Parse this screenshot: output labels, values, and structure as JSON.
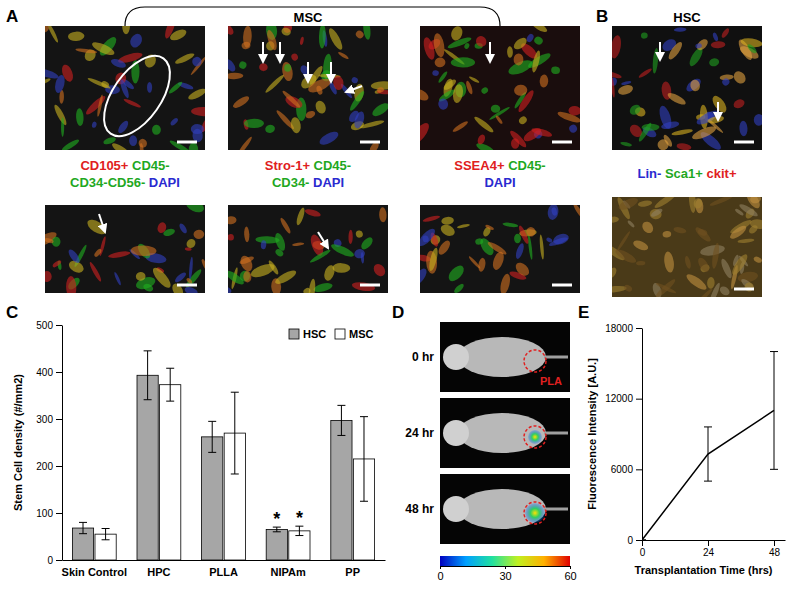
{
  "panel_labels": [
    "A",
    "B",
    "C",
    "D",
    "E"
  ],
  "panel_a": {
    "title": "MSC",
    "stains": [
      {
        "lines": [
          [
            {
              "text": "CD105+",
              "color": "#e02020"
            },
            {
              "text": " CD45-",
              "color": "#1fa81f"
            }
          ],
          [
            {
              "text": "CD34-CD56-",
              "color": "#1fa81f"
            },
            {
              "text": " DAPI",
              "color": "#2a2ad0"
            }
          ]
        ]
      },
      {
        "lines": [
          [
            {
              "text": "Stro-1+",
              "color": "#e02020"
            },
            {
              "text": " CD45-",
              "color": "#1fa81f"
            }
          ],
          [
            {
              "text": "CD34-",
              "color": "#1fa81f"
            },
            {
              "text": " DAPI",
              "color": "#2a2ad0"
            }
          ]
        ]
      },
      {
        "lines": [
          [
            {
              "text": "SSEA4+",
              "color": "#e02020"
            },
            {
              "text": " CD45-",
              "color": "#1fa81f"
            }
          ],
          [
            {
              "text": "DAPI",
              "color": "#2a2ad0"
            }
          ]
        ]
      }
    ]
  },
  "panel_b": {
    "title": "HSC",
    "stains": [
      {
        "lines": [
          [
            {
              "text": "Lin-",
              "color": "#2a2ad0"
            },
            {
              "text": " Sca1+",
              "color": "#1fa81f"
            },
            {
              "text": " ckit+",
              "color": "#e02020"
            }
          ]
        ]
      }
    ]
  },
  "chart_data": [
    {
      "type": "bar",
      "ylabel": "Stem Cell density (#/mm2)",
      "categories": [
        "Skin Control",
        "HPC",
        "PLLA",
        "NIPAm",
        "PP"
      ],
      "series": [
        {
          "name": "HSC",
          "color": "#a6a6a6",
          "values": [
            68,
            393,
            262,
            65,
            297
          ],
          "errors": [
            12,
            52,
            33,
            5,
            32
          ],
          "significance": [
            null,
            null,
            null,
            "*",
            null
          ]
        },
        {
          "name": "MSC",
          "color": "#ffffff",
          "values": [
            55,
            373,
            270,
            62,
            215
          ],
          "errors": [
            12,
            35,
            87,
            10,
            90
          ],
          "significance": [
            null,
            null,
            null,
            "*",
            null
          ]
        }
      ],
      "ylim": [
        0,
        500
      ],
      "yticks": [
        0,
        100,
        200,
        300,
        400,
        500
      ],
      "legend": "upper right"
    },
    {
      "type": "line",
      "xlabel": "Transplantation Time (hrs)",
      "ylabel": "Fluorescence Intensity [A.U.]",
      "x": [
        0,
        24,
        48
      ],
      "series": [
        {
          "color": "#000000",
          "values": [
            0,
            7300,
            11000
          ],
          "errors": [
            0,
            2300,
            5000
          ]
        }
      ],
      "xlim": [
        0,
        52
      ],
      "xticks": [
        0,
        24,
        48
      ],
      "ylim": [
        0,
        18000
      ],
      "yticks": [
        0,
        6000,
        12000,
        18000
      ]
    }
  ],
  "panel_d": {
    "times": [
      "0 hr",
      "24 hr",
      "48 hr"
    ],
    "site_label": "PLA",
    "colorbar": {
      "range": [
        0,
        60
      ],
      "ticks": [
        0,
        30,
        60
      ]
    }
  }
}
